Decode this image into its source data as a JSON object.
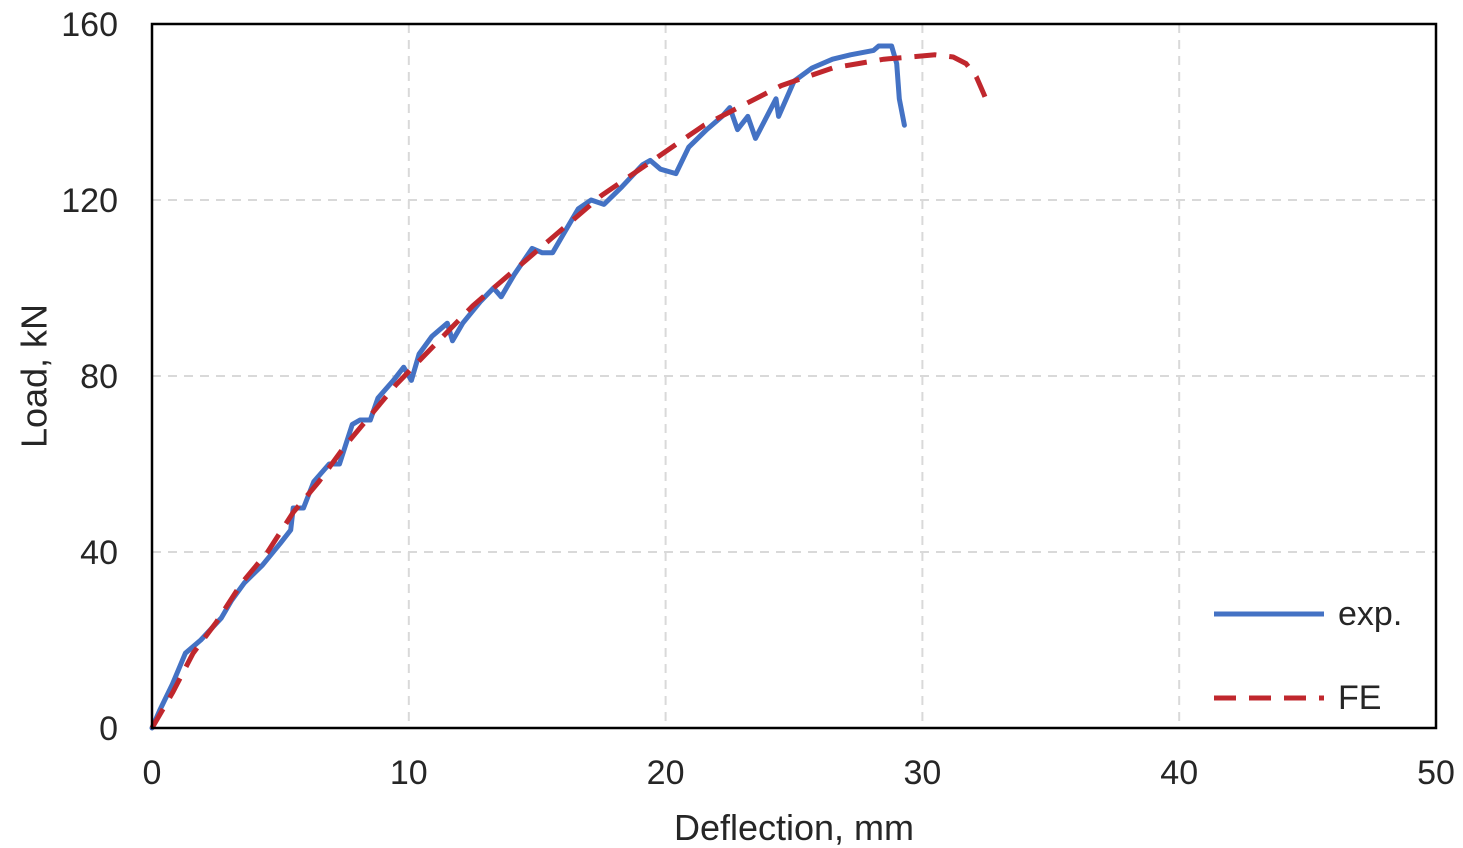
{
  "chart_data": {
    "type": "line",
    "xlabel": "Deflection, mm",
    "ylabel": "Load, kN",
    "xlim": [
      0,
      50
    ],
    "ylim": [
      0,
      160
    ],
    "x_ticks": [
      0,
      10,
      20,
      30,
      40,
      50
    ],
    "y_ticks": [
      0,
      40,
      80,
      120,
      160
    ],
    "grid": true,
    "legend_position": "bottom-right",
    "series": [
      {
        "name": "exp.",
        "style": "solid",
        "color": "#4472c4",
        "points": [
          [
            0,
            0
          ],
          [
            0.3,
            4
          ],
          [
            0.8,
            10
          ],
          [
            1.3,
            17
          ],
          [
            1.9,
            20
          ],
          [
            2.7,
            25
          ],
          [
            3.1,
            29
          ],
          [
            3.6,
            33
          ],
          [
            4.3,
            37
          ],
          [
            5.0,
            42
          ],
          [
            5.4,
            45
          ],
          [
            5.5,
            50
          ],
          [
            5.9,
            50
          ],
          [
            6.3,
            56
          ],
          [
            6.9,
            60
          ],
          [
            7.3,
            60
          ],
          [
            7.8,
            69
          ],
          [
            8.1,
            70
          ],
          [
            8.5,
            70
          ],
          [
            8.8,
            75
          ],
          [
            9.4,
            79
          ],
          [
            9.8,
            82
          ],
          [
            10.1,
            79
          ],
          [
            10.4,
            85
          ],
          [
            10.9,
            89
          ],
          [
            11.5,
            92
          ],
          [
            11.7,
            88
          ],
          [
            12.1,
            92
          ],
          [
            12.8,
            97
          ],
          [
            13.3,
            100
          ],
          [
            13.6,
            98
          ],
          [
            14.1,
            103
          ],
          [
            14.8,
            109
          ],
          [
            15.2,
            108
          ],
          [
            15.6,
            108
          ],
          [
            16.1,
            113
          ],
          [
            16.6,
            118
          ],
          [
            17.1,
            120
          ],
          [
            17.6,
            119
          ],
          [
            18.3,
            123
          ],
          [
            19.1,
            128
          ],
          [
            19.4,
            129
          ],
          [
            19.8,
            127
          ],
          [
            20.4,
            126
          ],
          [
            20.9,
            132
          ],
          [
            21.6,
            136
          ],
          [
            22.2,
            139
          ],
          [
            22.5,
            141
          ],
          [
            22.8,
            136
          ],
          [
            23.2,
            139
          ],
          [
            23.5,
            134
          ],
          [
            24.3,
            143
          ],
          [
            24.4,
            139
          ],
          [
            25.0,
            147
          ],
          [
            25.7,
            150
          ],
          [
            26.5,
            152
          ],
          [
            27.2,
            153
          ],
          [
            28.1,
            154
          ],
          [
            28.3,
            155
          ],
          [
            28.8,
            155
          ],
          [
            29.0,
            151
          ],
          [
            29.1,
            143
          ],
          [
            29.3,
            137
          ]
        ]
      },
      {
        "name": "FE",
        "style": "dashed",
        "color": "#c0272d",
        "points": [
          [
            0,
            0
          ],
          [
            0.8,
            8
          ],
          [
            1.6,
            17
          ],
          [
            2.5,
            24
          ],
          [
            3.5,
            33
          ],
          [
            4.5,
            40
          ],
          [
            5.5,
            49
          ],
          [
            6.5,
            56
          ],
          [
            7.5,
            64
          ],
          [
            8.5,
            71
          ],
          [
            9.5,
            78
          ],
          [
            10.5,
            84
          ],
          [
            11.5,
            90
          ],
          [
            12.5,
            96
          ],
          [
            13.5,
            101
          ],
          [
            14.5,
            106
          ],
          [
            15.5,
            111
          ],
          [
            16.5,
            116
          ],
          [
            17.5,
            121
          ],
          [
            18.5,
            125
          ],
          [
            19.5,
            129
          ],
          [
            20.5,
            133
          ],
          [
            21.5,
            137
          ],
          [
            22.5,
            140
          ],
          [
            23.5,
            143
          ],
          [
            24.5,
            146
          ],
          [
            25.5,
            148
          ],
          [
            26.5,
            150
          ],
          [
            27.5,
            151
          ],
          [
            28.5,
            152
          ],
          [
            29.5,
            152.5
          ],
          [
            30.5,
            153
          ],
          [
            31.2,
            152.5
          ],
          [
            31.7,
            151
          ],
          [
            32.1,
            148
          ],
          [
            32.4,
            144
          ],
          [
            32.6,
            141
          ]
        ]
      }
    ]
  }
}
